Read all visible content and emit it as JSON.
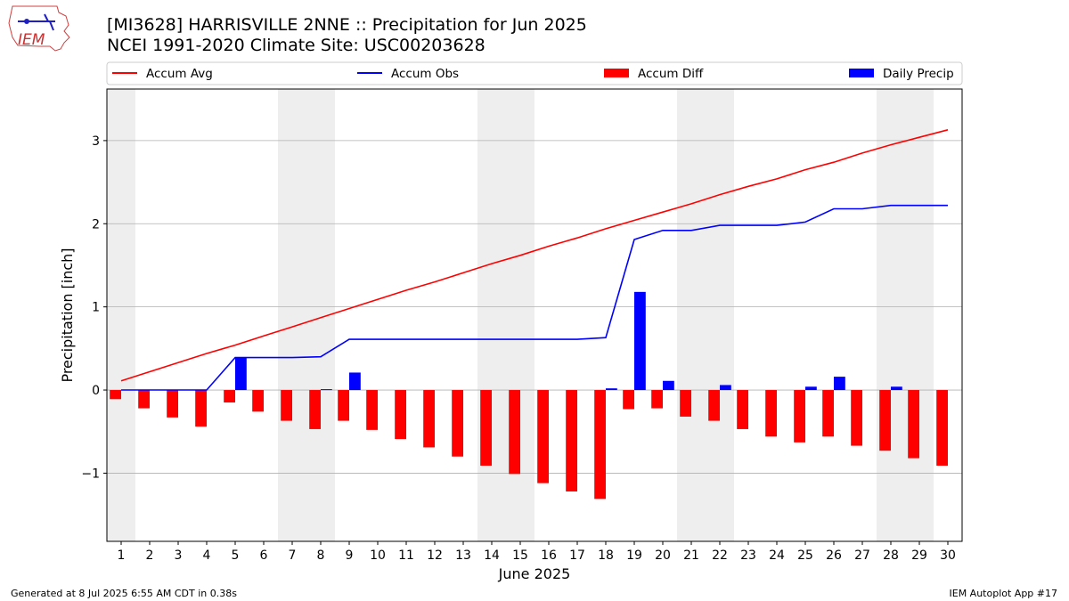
{
  "header": {
    "logo_text": "IEM",
    "title_line1": "[MI3628] HARRISVILLE 2NNE :: Precipitation for Jun 2025",
    "title_line2": "NCEI 1991-2020 Climate Site: USC00203628"
  },
  "footer": {
    "generated": "Generated at 8 Jul 2025 6:55 AM CDT in 0.38s",
    "app": "IEM Autoplot App #17"
  },
  "chart_data": {
    "type": "bar",
    "xlabel": "June 2025",
    "ylabel": "Precipitation [inch]",
    "ylim": [
      -1.82,
      3.62
    ],
    "xlim": [
      0.5,
      30.5
    ],
    "yticks": [
      -1,
      0,
      1,
      2,
      3
    ],
    "ytick_labels": [
      "−1",
      "0",
      "1",
      "2",
      "3"
    ],
    "grid": "horizontal",
    "legend_position": "top, above plot",
    "weekend_shading_color": "#eeeeee",
    "weekend_days": [
      1,
      7,
      8,
      14,
      15,
      21,
      22,
      28,
      29
    ],
    "days": [
      1,
      2,
      3,
      4,
      5,
      6,
      7,
      8,
      9,
      10,
      11,
      12,
      13,
      14,
      15,
      16,
      17,
      18,
      19,
      20,
      21,
      22,
      23,
      24,
      25,
      26,
      27,
      28,
      29,
      30
    ],
    "series": [
      {
        "name": "Accum Avg",
        "kind": "line",
        "color": "#ff0000",
        "values": [
          0.11,
          0.22,
          0.33,
          0.44,
          0.54,
          0.65,
          0.76,
          0.87,
          0.98,
          1.09,
          1.2,
          1.3,
          1.41,
          1.52,
          1.62,
          1.73,
          1.83,
          1.94,
          2.04,
          2.14,
          2.24,
          2.35,
          2.45,
          2.54,
          2.65,
          2.74,
          2.85,
          2.95,
          3.04,
          3.13
        ]
      },
      {
        "name": "Accum Obs",
        "kind": "line",
        "color": "#0000ff",
        "values": [
          0.0,
          0.0,
          0.0,
          0.0,
          0.39,
          0.39,
          0.39,
          0.4,
          0.61,
          0.61,
          0.61,
          0.61,
          0.61,
          0.61,
          0.61,
          0.61,
          0.61,
          0.63,
          1.81,
          1.92,
          1.92,
          1.98,
          1.98,
          1.98,
          2.02,
          2.18,
          2.18,
          2.22,
          2.22,
          2.22
        ]
      },
      {
        "name": "Accum Diff",
        "kind": "bar",
        "color": "#ff0000",
        "values": [
          -0.11,
          -0.22,
          -0.33,
          -0.44,
          -0.15,
          -0.26,
          -0.37,
          -0.47,
          -0.37,
          -0.48,
          -0.59,
          -0.69,
          -0.8,
          -0.91,
          -1.01,
          -1.12,
          -1.22,
          -1.31,
          -0.23,
          -0.22,
          -0.32,
          -0.37,
          -0.47,
          -0.56,
          -0.63,
          -0.56,
          -0.67,
          -0.73,
          -0.82,
          -0.91
        ]
      },
      {
        "name": "Daily Precip",
        "kind": "bar",
        "color": "#0000ff",
        "values": [
          0,
          0,
          0,
          0,
          0.39,
          0,
          0,
          0.01,
          0.21,
          0,
          0,
          0,
          0,
          0,
          0,
          0,
          0,
          0.02,
          1.18,
          0.11,
          0,
          0.06,
          0,
          0,
          0.04,
          0.16,
          0,
          0.04,
          0,
          0
        ]
      }
    ]
  }
}
